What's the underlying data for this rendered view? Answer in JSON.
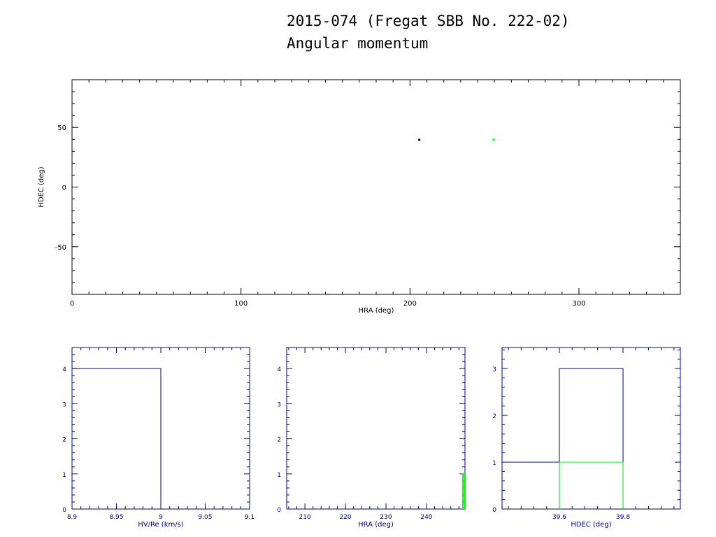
{
  "header": {
    "title": "2015-074 (Fregat SBB No. 222-02)",
    "subtitle": "Angular momentum"
  },
  "colors": {
    "axis_main": "#000000",
    "axis_hist": "#00008b",
    "series_a": "#00008b",
    "series_b": "#00ff00"
  },
  "chart_data": [
    {
      "type": "scatter",
      "xlabel": "HRA (deg)",
      "ylabel": "HDEC (deg)",
      "xlim": [
        0,
        360
      ],
      "ylim": [
        -90,
        90
      ],
      "xticks": [
        0,
        100,
        200,
        300
      ],
      "yticks": [
        -50,
        0,
        50
      ],
      "series": [
        {
          "color": "#00008b",
          "points": [
            [
              205.5,
              39.6
            ]
          ]
        },
        {
          "color": "#00ff00",
          "points": [
            [
              249.5,
              39.7
            ]
          ]
        }
      ]
    },
    {
      "type": "bar",
      "xlabel": "HV/Re (km/s)",
      "ylabel": "",
      "xlim": [
        8.9,
        9.1
      ],
      "ylim": [
        0,
        4.6
      ],
      "xtick_labels": [
        "8.9",
        "8.95",
        "9",
        "9.05",
        "9.1"
      ],
      "yticks": [
        0,
        1,
        2,
        3,
        4
      ],
      "series": [
        {
          "color": "#00008b",
          "bins": [
            [
              8.9,
              9.0,
              4
            ]
          ]
        }
      ]
    },
    {
      "type": "bar",
      "xlabel": "HRA (deg)",
      "ylabel": "",
      "xlim": [
        205.5,
        249.5
      ],
      "ylim": [
        0,
        4.6
      ],
      "xtick_labels": [
        "210",
        "220",
        "230",
        "240"
      ],
      "yticks": [
        0,
        1,
        2,
        3,
        4
      ],
      "series": [
        {
          "color": "#00ff00",
          "bins": [
            [
              249.0,
              249.5,
              1
            ]
          ]
        }
      ]
    },
    {
      "type": "bar",
      "xlabel": "HDEC (deg)",
      "ylabel": "",
      "xlim": [
        39.42,
        39.98
      ],
      "ylim": [
        0,
        3.45
      ],
      "xtick_labels": [
        "39.6",
        "39.8"
      ],
      "yticks": [
        0,
        1,
        2,
        3
      ],
      "series": [
        {
          "color": "#00008b",
          "bins": [
            [
              39.42,
              39.6,
              1
            ],
            [
              39.6,
              39.8,
              3
            ]
          ]
        },
        {
          "color": "#00ff00",
          "bins": [
            [
              39.6,
              39.8,
              1
            ]
          ]
        }
      ]
    }
  ]
}
